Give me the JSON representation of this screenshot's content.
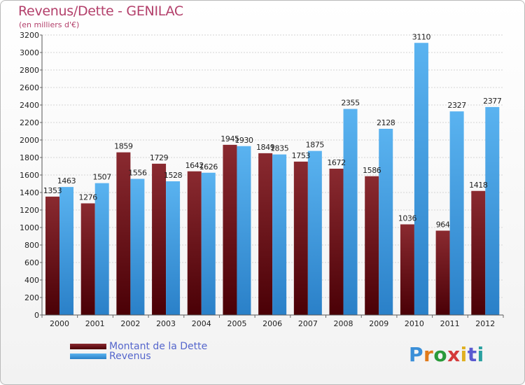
{
  "title": "Revenus/Dette - GENILAC",
  "subtitle": "(en milliers d'€)",
  "logo_text": "Proxiti",
  "colors": {
    "dette": "#6b0c12",
    "revenus": "#3a9ee8",
    "title": "#b3406b"
  },
  "chart_data": {
    "type": "bar",
    "title": "Revenus/Dette - GENILAC",
    "ylabel": "(en milliers d'€)",
    "categories": [
      "2000",
      "2001",
      "2002",
      "2003",
      "2004",
      "2005",
      "2006",
      "2007",
      "2008",
      "2009",
      "2010",
      "2011",
      "2012"
    ],
    "ylim": [
      0,
      3200
    ],
    "yticks": [
      0,
      200,
      400,
      600,
      800,
      1000,
      1200,
      1400,
      1600,
      1800,
      2000,
      2200,
      2400,
      2600,
      2800,
      3000,
      3200
    ],
    "grid": true,
    "legend_position": "bottom-left",
    "series": [
      {
        "name": "Montant de la Dette",
        "values": [
          1353,
          1276,
          1859,
          1729,
          1642,
          1945,
          1849,
          1753,
          1672,
          1586,
          1036,
          964,
          1418
        ]
      },
      {
        "name": "Revenus",
        "values": [
          1463,
          1507,
          1556,
          1528,
          1626,
          1930,
          1835,
          1875,
          2355,
          2128,
          3110,
          2327,
          2377
        ]
      }
    ]
  }
}
